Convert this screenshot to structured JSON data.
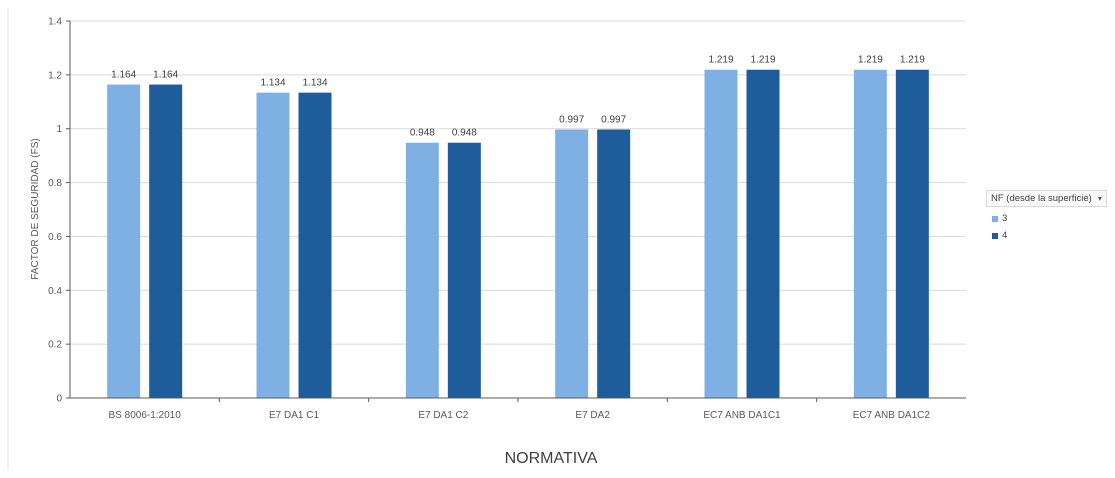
{
  "chart_data": {
    "type": "bar",
    "title": "",
    "xlabel": "NORMATIVA",
    "ylabel": "FACTOR DE SEGURIDAD (FS)",
    "ylim": [
      0,
      1.4
    ],
    "yticks": [
      "0",
      "0.2",
      "0.4",
      "0.6",
      "0.8",
      "1",
      "1.2",
      "1.4"
    ],
    "ytick_values": [
      0,
      0.2,
      0.4,
      0.6,
      0.8,
      1.0,
      1.2,
      1.4
    ],
    "grid": true,
    "legend_position": "right",
    "categories": [
      "BS 8006-1:2010",
      "E7 DA1 C1",
      "E7 DA1 C2",
      "E7 DA2",
      "EC7 ANB DA1C1",
      "EC7 ANB DA1C2"
    ],
    "series": [
      {
        "name": "3",
        "color": "#7fb0e3",
        "values": [
          1.164,
          1.134,
          0.948,
          0.997,
          1.219,
          1.219
        ],
        "labels": [
          "1.164",
          "1.134",
          "0.948",
          "0.997",
          "1.219",
          "1.219"
        ]
      },
      {
        "name": "4",
        "color": "#1f5c9b",
        "values": [
          1.164,
          1.134,
          0.948,
          0.997,
          1.219,
          1.219
        ],
        "labels": [
          "1.164",
          "1.134",
          "0.948",
          "0.997",
          "1.219",
          "1.219"
        ]
      }
    ]
  },
  "legend": {
    "title": "NF (desde la superficie)",
    "dropdown_icon": "chevron-down-icon"
  }
}
